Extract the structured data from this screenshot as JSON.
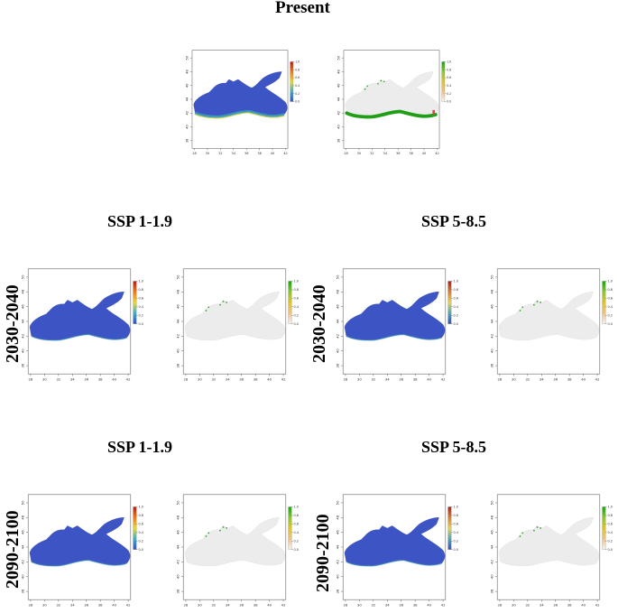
{
  "titles": {
    "present": "Present",
    "ssp_left_mid": "SSP 1-1.9",
    "ssp_right_mid": "SSP 5-8.5",
    "ssp_left_bot": "SSP 1-1.9",
    "ssp_right_bot": "SSP 5-8.5"
  },
  "row_labels": {
    "mid_left": "2030-2040",
    "mid_right": "2030-2040",
    "bot_left": "2090-2100",
    "bot_right": "2090-2100"
  },
  "axes": {
    "x_ticks": [
      "28",
      "30",
      "32",
      "34",
      "36",
      "38",
      "40",
      "42"
    ],
    "y_ticks": [
      "38",
      "40",
      "42",
      "44",
      "46",
      "48",
      "50"
    ],
    "colorbar_ticks": [
      "0.0",
      "0.2",
      "0.4",
      "0.6",
      "0.8",
      "1.0"
    ]
  },
  "colors": {
    "sea_probability": "#3d54c4",
    "sea_edge_teal": "#3a9fb4",
    "sea_edge_yellow": "#e0d23a",
    "binary_absent": "#ececec",
    "binary_present": "#1f9e16",
    "prob_scale": [
      "#3550bd",
      "#48a8c0",
      "#e7d640",
      "#e57a24",
      "#b61a12"
    ],
    "binary_scale": [
      "#f3f3f3",
      "#e9c28d",
      "#dcc23a",
      "#8cc240",
      "#1f9e16"
    ]
  }
}
